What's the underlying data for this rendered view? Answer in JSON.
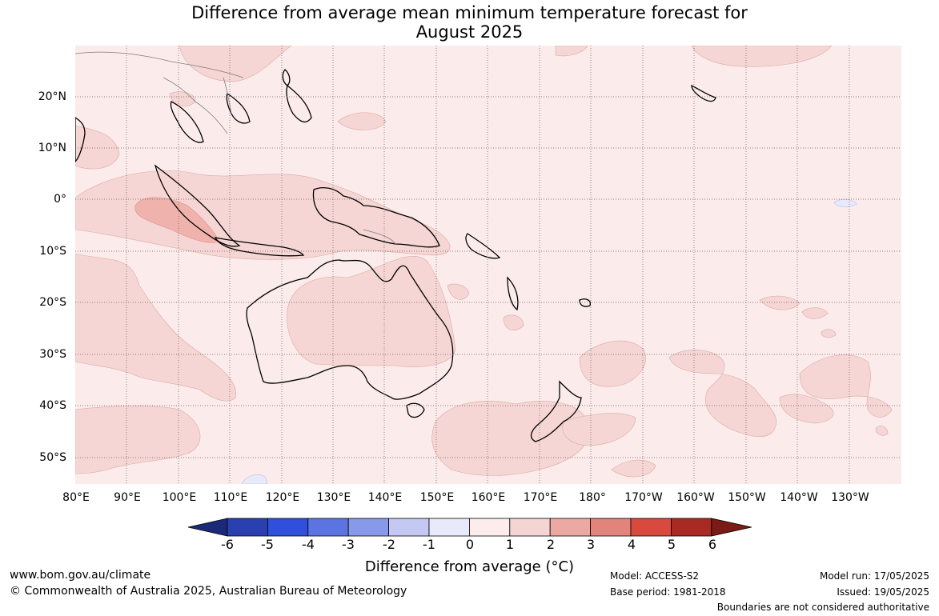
{
  "title_line1": "Difference from average mean minimum temperature forecast for",
  "title_line2": "August 2025",
  "lat_labels": [
    "20°N",
    "10°N",
    "0°",
    "10°S",
    "20°S",
    "30°S",
    "40°S",
    "50°S"
  ],
  "lon_labels": [
    "80°E",
    "90°E",
    "100°E",
    "110°E",
    "120°E",
    "130°E",
    "140°E",
    "150°E",
    "160°E",
    "170°E",
    "180°",
    "170°W",
    "160°W",
    "150°W",
    "140°W",
    "130°W"
  ],
  "colorbar": {
    "title": "Difference from average (°C)",
    "ticks": [
      "-6",
      "-5",
      "-4",
      "-3",
      "-2",
      "-1",
      "0",
      "1",
      "2",
      "3",
      "4",
      "5",
      "6"
    ],
    "colors": [
      "#1b2a78",
      "#2a40b0",
      "#2f4fdc",
      "#5c74e2",
      "#8799e8",
      "#c3c9f3",
      "#e8e9fb",
      "#fcecec",
      "#f5d5d3",
      "#eca9a4",
      "#e3847c",
      "#d84a3e",
      "#a92a23",
      "#7a1b17"
    ]
  },
  "footer": {
    "website": "www.bom.gov.au/climate",
    "copyright": "© Commonwealth of Australia 2025, Australian Bureau of Meteorology",
    "model": "Model: ACCESS-S2",
    "base_period": "Base period: 1981-2018",
    "model_run": "Model run: 17/05/2025",
    "issued": "Issued: 19/05/2025",
    "disclaimer": "Boundaries are not considered authoritative"
  }
}
